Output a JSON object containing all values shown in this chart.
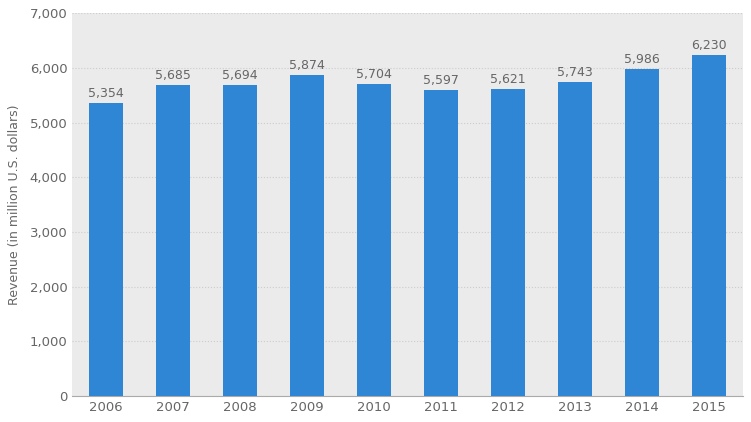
{
  "years": [
    "2006",
    "2007",
    "2008",
    "2009",
    "2010",
    "2011",
    "2012",
    "2013",
    "2014",
    "2015"
  ],
  "values": [
    5354,
    5685,
    5694,
    5874,
    5704,
    5597,
    5621,
    5743,
    5986,
    6230
  ],
  "bar_color": "#2e86d4",
  "label_color": "#666666",
  "ylabel": "Revenue (in million U.S. dollars)",
  "ylim": [
    0,
    7000
  ],
  "yticks": [
    0,
    1000,
    2000,
    3000,
    4000,
    5000,
    6000,
    7000
  ],
  "grid_color": "#cccccc",
  "bg_color": "#ffffff",
  "plot_bg_color": "#ffffff",
  "col_bg_color": "#ebebeb",
  "bar_label_fontsize": 9,
  "axis_fontsize": 9.5,
  "ylabel_fontsize": 9
}
